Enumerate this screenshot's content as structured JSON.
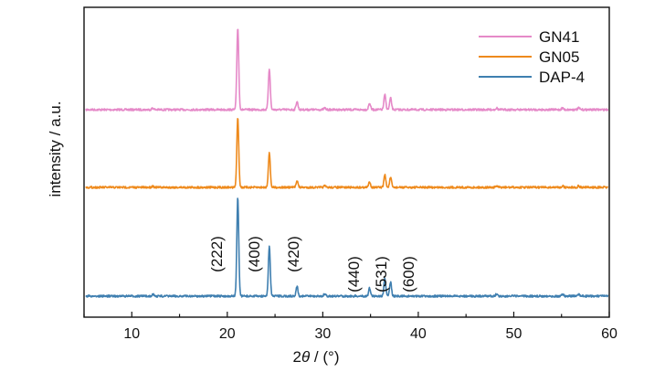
{
  "chart_data": {
    "type": "line",
    "xlabel_prefix": "2",
    "xlabel_theta": "θ",
    "xlabel_suffix": " / (°)",
    "ylabel": "intensity / a.u.",
    "xlim": [
      5,
      60
    ],
    "xticks": [
      10,
      20,
      30,
      40,
      50,
      60
    ],
    "grid": false,
    "legend_position": "top-right",
    "peak_labels": [
      {
        "text": "(222)",
        "x": 21.1
      },
      {
        "text": "(400)",
        "x": 24.4
      },
      {
        "text": "(420)",
        "x": 27.3
      },
      {
        "text": "(440)",
        "x": 34.9
      },
      {
        "text": "(531)",
        "x": 36.5
      },
      {
        "text": "(600)",
        "x": 37.8
      }
    ],
    "peaks": [
      {
        "x": 12.2,
        "rel": 0.02
      },
      {
        "x": 21.1,
        "rel": 1.0
      },
      {
        "x": 24.4,
        "rel": 0.5
      },
      {
        "x": 27.3,
        "rel": 0.1
      },
      {
        "x": 30.2,
        "rel": 0.02
      },
      {
        "x": 34.9,
        "rel": 0.08
      },
      {
        "x": 36.5,
        "rel": 0.18
      },
      {
        "x": 37.1,
        "rel": 0.14
      },
      {
        "x": 48.2,
        "rel": 0.02
      },
      {
        "x": 55.1,
        "rel": 0.02
      },
      {
        "x": 56.8,
        "rel": 0.02
      }
    ],
    "series": [
      {
        "name": "GN41",
        "color": "#e589c8"
      },
      {
        "name": "GN05",
        "color": "#ee8a1c"
      },
      {
        "name": "DAP-4",
        "color": "#3f7fb0"
      }
    ]
  }
}
